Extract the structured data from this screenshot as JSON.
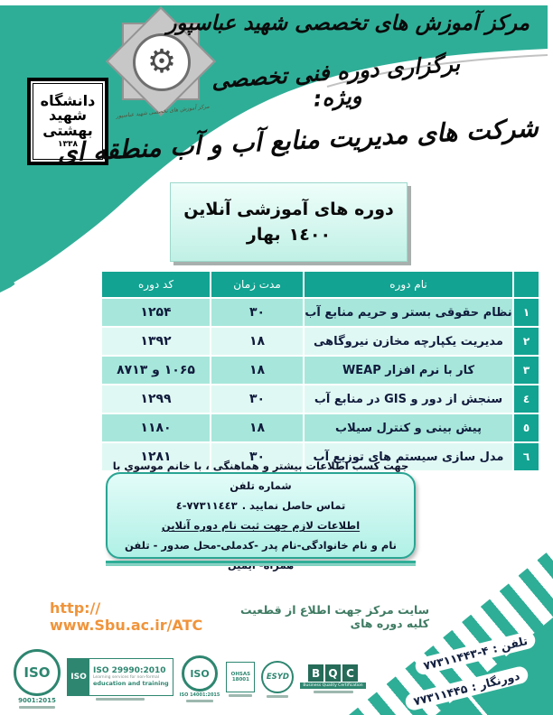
{
  "header": {
    "org_title": "مرکز آموزش های تخصصی شهید عباسپور",
    "callig_line1": "برگزاری دوره فنی تخصصی ویژه:",
    "callig_line2": "شرکت های مدیریت منابع آب و آب منطقه ای",
    "emblem_signature": "مرکز آموزش های تخصصی شهید عباسپور",
    "university_logo": {
      "word1": "دانشگاه",
      "word2": "شهید",
      "word3": "بهشتی",
      "year": "۱۳۳۸"
    }
  },
  "title_box": {
    "line1": "دوره های آموزشی آنلاین",
    "season": "بهار",
    "year": "١٤٠٠"
  },
  "table": {
    "headers": {
      "name": "نام دوره",
      "duration": "مدت زمان",
      "code": "کد دوره"
    },
    "rows": [
      {
        "num": "۱",
        "name": "نظام حقوقی بستر و حریم منابع آب",
        "duration": "۳۰",
        "code": "۱۲۵۴"
      },
      {
        "num": "۲",
        "name": "مدیریت یکپارچه مخازن نیروگاهی",
        "duration": "۱۸",
        "code": "۱۳۹۲"
      },
      {
        "num": "۳",
        "name": "کار با نرم افزار WEAP",
        "duration": "۱۸",
        "code": "۱۰۶۵ و ۸۷۱۳"
      },
      {
        "num": "٤",
        "name": "سنجش از دور و GIS در منابع آب",
        "duration": "۳۰",
        "code": "۱۲۹۹"
      },
      {
        "num": "٥",
        "name": "پیش بینی و کنترل سیلاب",
        "duration": "۱۸",
        "code": "۱۱۸۰"
      },
      {
        "num": "٦",
        "name": "مدل سازی سیستم های توزیع آب",
        "duration": "۳۰",
        "code": "۱۲۸۱"
      }
    ]
  },
  "info_box": {
    "line1": "جهت کسب اطلاعات بیشتر و هماهنگی ، با خانم موسوي  با شماره تلفن",
    "line2_number": "٧٧٣١١٤٤٣-٤",
    "line2_text": "تماس حاصل نمایید .",
    "line3": "اطلاعات لازم جهت ثبت نام دوره آنلاین",
    "line4": "نام و نام خانوادگی-نام پدر -کدملی-محل صدور - تلفن همراه- ایمیل"
  },
  "website": {
    "text": "سایت مرکز جهت اطلاع از قطعیت کلیه دوره های",
    "url": "http:// www.Sbu.ac.ir/ATC"
  },
  "certifications": {
    "iso9001": {
      "iso": "ISO",
      "code": "9001:2015"
    },
    "iso29990": {
      "iso": "ISO",
      "title": "ISO 29990:2010",
      "sub1": "Learning services for non-formal",
      "sub2": "education and training"
    },
    "iso14001": {
      "iso": "ISO",
      "code": "ISO 14001:2015"
    },
    "ohsas": {
      "line1": "OHSAS",
      "line2": "18001"
    },
    "esyd": {
      "label": "ESYD"
    },
    "bqc": {
      "letters": [
        "B",
        "Q",
        "C"
      ],
      "caption": "Business Quality Certification"
    }
  },
  "contact": {
    "phone_label": "تلفن :",
    "phone": "۷۷۳۱۱۴۴۳-۴",
    "fax_label": "دورنگار :",
    "fax": "۷۷۳۱۱۴۴۵"
  },
  "colors": {
    "teal": "#2fae97",
    "teal_dark": "#12a392",
    "row_odd": "#a7e7db",
    "row_even": "#e0f8f3",
    "text_navy": "#101b3c",
    "url_orange": "#f0943b",
    "site_text_green": "#3f7b63",
    "cert_green": "#2e8670"
  }
}
